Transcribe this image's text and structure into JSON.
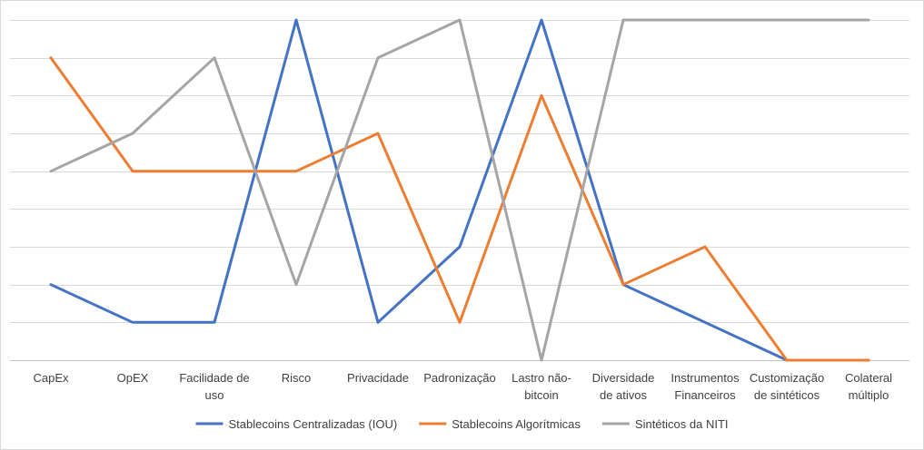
{
  "chart_data": {
    "type": "line",
    "title": "",
    "xlabel": "",
    "ylabel": "",
    "ylim": [
      0,
      9
    ],
    "grid": true,
    "legend_position": "bottom",
    "categories": [
      [
        "CapEx"
      ],
      [
        "OpEX"
      ],
      [
        "Facilidade de",
        "uso"
      ],
      [
        "Risco"
      ],
      [
        "Privacidade"
      ],
      [
        "Padronização"
      ],
      [
        "Lastro não-",
        "bitcoin"
      ],
      [
        "Diversidade",
        "de ativos"
      ],
      [
        "Instrumentos",
        "Financeiros"
      ],
      [
        "Customização",
        "de sintéticos"
      ],
      [
        "Colateral",
        "múltiplo"
      ]
    ],
    "series": [
      {
        "name": "Stablecoins Centralizadas (IOU)",
        "color": "#4472C4",
        "values": [
          2,
          1,
          1,
          9,
          1,
          3,
          9,
          2,
          1,
          0,
          0
        ]
      },
      {
        "name": "Stablecoins Algorítmicas",
        "color": "#ED7D31",
        "values": [
          8,
          5,
          5,
          5,
          6,
          1,
          7,
          2,
          3,
          0,
          0
        ]
      },
      {
        "name": "Sintéticos da NITI",
        "color": "#A5A5A5",
        "values": [
          5,
          6,
          8,
          2,
          8,
          9,
          0,
          9,
          9,
          9,
          9
        ]
      }
    ]
  }
}
